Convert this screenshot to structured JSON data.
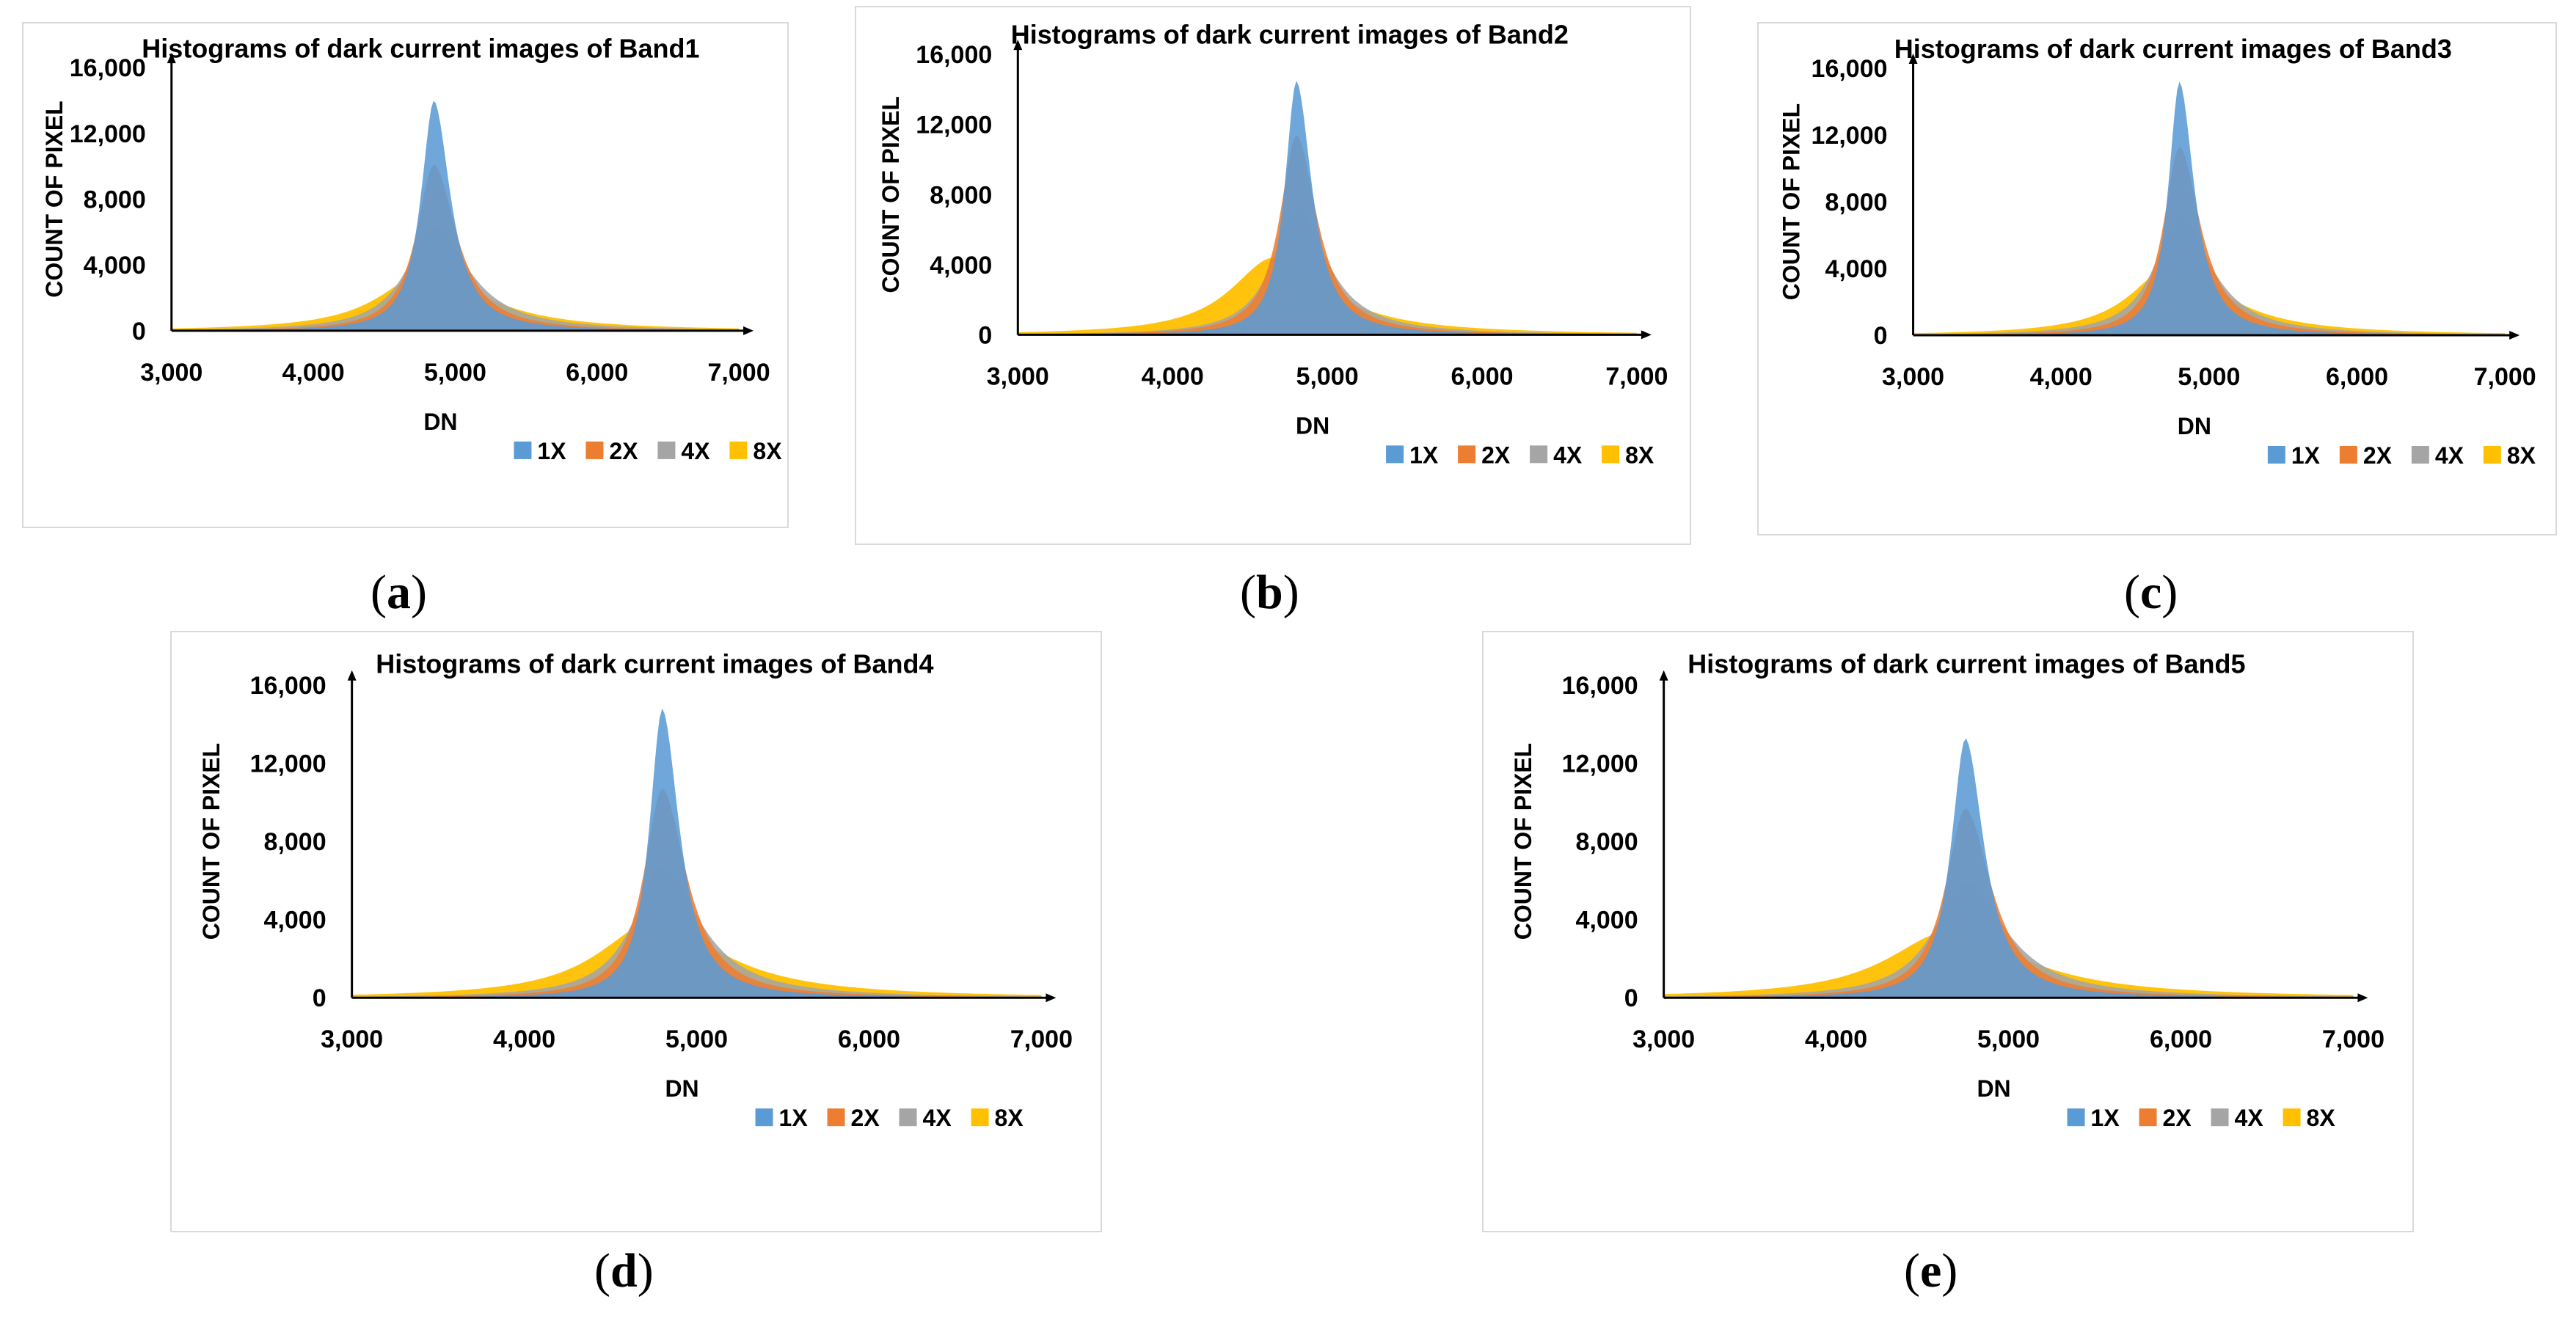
{
  "figure": {
    "legend_labels": [
      "1X",
      "2X",
      "4X",
      "8X"
    ],
    "colors": {
      "1X": "#5b9bd5",
      "2X": "#ed7d31",
      "4X": "#a5a5a5",
      "8X": "#ffc000"
    },
    "sublabels": [
      "a",
      "b",
      "c",
      "d",
      "e"
    ]
  },
  "chart_data": [
    {
      "type": "area",
      "title": "Histograms of dark current images of Band1",
      "xlabel": "DN",
      "ylabel": "COUNT OF PIXEL",
      "xlim": [
        3000,
        7000
      ],
      "ylim": [
        0,
        16000
      ],
      "xticks": [
        "3,000",
        "4,000",
        "5,000",
        "6,000",
        "7,000"
      ],
      "yticks": [
        "0",
        "4,000",
        "8,000",
        "12,000",
        "16,000"
      ],
      "series": [
        {
          "name": "1X",
          "peak_dn": 4850,
          "peak_count": 14000,
          "left_width": 110,
          "right_width": 140
        },
        {
          "name": "2X",
          "peak_dn": 4850,
          "peak_count": 10100,
          "left_width": 150,
          "right_width": 190
        },
        {
          "name": "4X",
          "peak_dn": 4850,
          "peak_count": 6400,
          "left_width": 230,
          "right_width": 290
        },
        {
          "name": "8X",
          "peak_dn": 4800,
          "peak_count": 3600,
          "left_width": 390,
          "right_width": 480
        }
      ]
    },
    {
      "type": "area",
      "title": "Histograms of dark current images of Band2",
      "xlabel": "DN",
      "ylabel": "COUNT OF PIXEL",
      "xlim": [
        3000,
        7000
      ],
      "ylim": [
        0,
        16000
      ],
      "xticks": [
        "3,000",
        "4,000",
        "5,000",
        "6,000",
        "7,000"
      ],
      "yticks": [
        "0",
        "4,000",
        "8,000",
        "12,000",
        "16,000"
      ],
      "series": [
        {
          "name": "1X",
          "peak_dn": 4800,
          "peak_count": 14500,
          "left_width": 90,
          "right_width": 120
        },
        {
          "name": "2X",
          "peak_dn": 4800,
          "peak_count": 11400,
          "left_width": 130,
          "right_width": 160
        },
        {
          "name": "4X",
          "peak_dn": 4800,
          "peak_count": 7400,
          "left_width": 180,
          "right_width": 230
        },
        {
          "name": "8X",
          "peak_dn": 4650,
          "peak_count": 4400,
          "left_width": 330,
          "right_width": 420
        }
      ]
    },
    {
      "type": "area",
      "title": "Histograms of dark current images of Band3",
      "xlabel": "DN",
      "ylabel": "COUNT OF PIXEL",
      "xlim": [
        3000,
        7000
      ],
      "ylim": [
        0,
        16000
      ],
      "xticks": [
        "3,000",
        "4,000",
        "5,000",
        "6,000",
        "7,000"
      ],
      "yticks": [
        "0",
        "4,000",
        "8,000",
        "12,000",
        "16,000"
      ],
      "series": [
        {
          "name": "1X",
          "peak_dn": 4800,
          "peak_count": 15200,
          "left_width": 90,
          "right_width": 120
        },
        {
          "name": "2X",
          "peak_dn": 4800,
          "peak_count": 11300,
          "left_width": 130,
          "right_width": 170
        },
        {
          "name": "4X",
          "peak_dn": 4800,
          "peak_count": 7200,
          "left_width": 200,
          "right_width": 250
        },
        {
          "name": "8X",
          "peak_dn": 4750,
          "peak_count": 4200,
          "left_width": 330,
          "right_width": 420
        }
      ]
    },
    {
      "type": "area",
      "title": "Histograms of dark current images of Band4",
      "xlabel": "DN",
      "ylabel": "COUNT OF PIXEL",
      "xlim": [
        3000,
        7000
      ],
      "ylim": [
        0,
        16000
      ],
      "xticks": [
        "3,000",
        "4,000",
        "5,000",
        "6,000",
        "7,000"
      ],
      "yticks": [
        "0",
        "4,000",
        "8,000",
        "12,000",
        "16,000"
      ],
      "series": [
        {
          "name": "1X",
          "peak_dn": 4800,
          "peak_count": 14800,
          "left_width": 90,
          "right_width": 120
        },
        {
          "name": "2X",
          "peak_dn": 4800,
          "peak_count": 10700,
          "left_width": 130,
          "right_width": 170
        },
        {
          "name": "4X",
          "peak_dn": 4800,
          "peak_count": 6700,
          "left_width": 200,
          "right_width": 260
        },
        {
          "name": "8X",
          "peak_dn": 4750,
          "peak_count": 3900,
          "left_width": 380,
          "right_width": 470
        }
      ]
    },
    {
      "type": "area",
      "title": "Histograms of dark current images of Band5",
      "xlabel": "DN",
      "ylabel": "COUNT OF PIXEL",
      "xlim": [
        3000,
        7000
      ],
      "ylim": [
        0,
        16000
      ],
      "xticks": [
        "3,000",
        "4,000",
        "5,000",
        "6,000",
        "7,000"
      ],
      "yticks": [
        "0",
        "4,000",
        "8,000",
        "12,000",
        "16,000"
      ],
      "series": [
        {
          "name": "1X",
          "peak_dn": 4750,
          "peak_count": 13300,
          "left_width": 100,
          "right_width": 130
        },
        {
          "name": "2X",
          "peak_dn": 4750,
          "peak_count": 9700,
          "left_width": 140,
          "right_width": 180
        },
        {
          "name": "4X",
          "peak_dn": 4750,
          "peak_count": 5900,
          "left_width": 220,
          "right_width": 280
        },
        {
          "name": "8X",
          "peak_dn": 4650,
          "peak_count": 3400,
          "left_width": 420,
          "right_width": 520
        }
      ]
    }
  ]
}
